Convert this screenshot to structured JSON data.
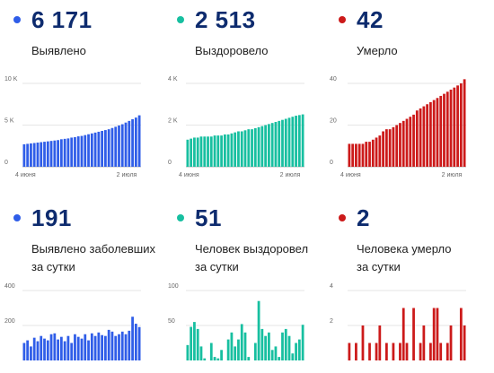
{
  "panels": [
    {
      "value": "6 171",
      "label_lines": [
        "Выявлено"
      ],
      "color": "#2f5de8"
    },
    {
      "value": "2 513",
      "label_lines": [
        "Выздоровело"
      ],
      "color": "#17bfa0"
    },
    {
      "value": "42",
      "label_lines": [
        "Умерло"
      ],
      "color": "#cc1a1a"
    },
    {
      "value": "191",
      "label_lines": [
        "Выявлено заболевших",
        "за сутки"
      ],
      "color": "#2f5de8"
    },
    {
      "value": "51",
      "label_lines": [
        "Человек выздоровел",
        "за сутки"
      ],
      "color": "#17bfa0"
    },
    {
      "value": "2",
      "label_lines": [
        "Человека умерло",
        "за сутки"
      ],
      "color": "#cc1a1a"
    }
  ],
  "chart_data": [
    {
      "type": "bar",
      "series": [
        {
          "values": [
            2700,
            2750,
            2800,
            2850,
            2900,
            2950,
            3000,
            3050,
            3100,
            3150,
            3200,
            3300,
            3350,
            3400,
            3500,
            3550,
            3650,
            3700,
            3800,
            3900,
            4000,
            4100,
            4200,
            4300,
            4400,
            4500,
            4650,
            4800,
            4950,
            5100,
            5300,
            5500,
            5700,
            5900,
            6171
          ]
        }
      ],
      "x_ticks": [
        "4 июня",
        "2 июля"
      ],
      "y_ticks": [
        "0",
        "5 K",
        "10 K"
      ],
      "ylim": [
        0,
        10000
      ],
      "color": "#2f5de8"
    },
    {
      "type": "bar",
      "series": [
        {
          "values": [
            1300,
            1350,
            1400,
            1400,
            1450,
            1450,
            1450,
            1450,
            1500,
            1500,
            1500,
            1550,
            1550,
            1600,
            1650,
            1700,
            1700,
            1750,
            1800,
            1800,
            1850,
            1900,
            1950,
            2000,
            2050,
            2100,
            2150,
            2200,
            2250,
            2300,
            2350,
            2400,
            2450,
            2480,
            2513
          ]
        }
      ],
      "x_ticks": [
        "4 июня",
        "2 июля"
      ],
      "y_ticks": [
        "0",
        "2 K",
        "4 K"
      ],
      "ylim": [
        0,
        4000
      ],
      "color": "#17bfa0"
    },
    {
      "type": "bar",
      "series": [
        {
          "values": [
            11,
            11,
            11,
            11,
            11,
            12,
            12,
            13,
            14,
            15,
            17,
            18,
            18,
            19,
            20,
            21,
            22,
            23,
            24,
            25,
            27,
            28,
            29,
            30,
            31,
            32,
            33,
            34,
            35,
            36,
            37,
            38,
            39,
            40,
            42
          ]
        }
      ],
      "x_ticks": [
        "4 июня",
        "2 июля"
      ],
      "y_ticks": [
        "0",
        "20",
        "40"
      ],
      "ylim": [
        0,
        40
      ],
      "color": "#cc1a1a"
    },
    {
      "type": "bar",
      "series": [
        {
          "values": [
            100,
            115,
            80,
            130,
            110,
            140,
            125,
            115,
            150,
            155,
            120,
            135,
            110,
            140,
            100,
            150,
            135,
            125,
            150,
            115,
            155,
            140,
            160,
            145,
            140,
            175,
            165,
            140,
            150,
            165,
            150,
            170,
            250,
            210,
            191
          ]
        }
      ],
      "y_ticks": [
        "200",
        "400"
      ],
      "ylim": [
        0,
        400
      ],
      "color": "#2f5de8"
    },
    {
      "type": "bar",
      "series": [
        {
          "values": [
            22,
            48,
            55,
            45,
            20,
            3,
            0,
            25,
            5,
            3,
            15,
            0,
            30,
            40,
            20,
            30,
            52,
            40,
            5,
            0,
            25,
            85,
            45,
            35,
            40,
            15,
            20,
            5,
            40,
            45,
            35,
            10,
            25,
            30,
            51
          ]
        }
      ],
      "y_ticks": [
        "50",
        "100"
      ],
      "ylim": [
        0,
        100
      ],
      "color": "#17bfa0"
    },
    {
      "type": "bar",
      "series": [
        {
          "values": [
            1,
            0,
            1,
            0,
            2,
            0,
            1,
            0,
            1,
            2,
            0,
            1,
            0,
            1,
            0,
            1,
            3,
            1,
            0,
            3,
            0,
            1,
            2,
            0,
            1,
            3,
            3,
            1,
            0,
            1,
            2,
            0,
            0,
            3,
            2
          ]
        }
      ],
      "y_ticks": [
        "2",
        "4"
      ],
      "ylim": [
        0,
        4
      ],
      "color": "#cc1a1a"
    }
  ]
}
